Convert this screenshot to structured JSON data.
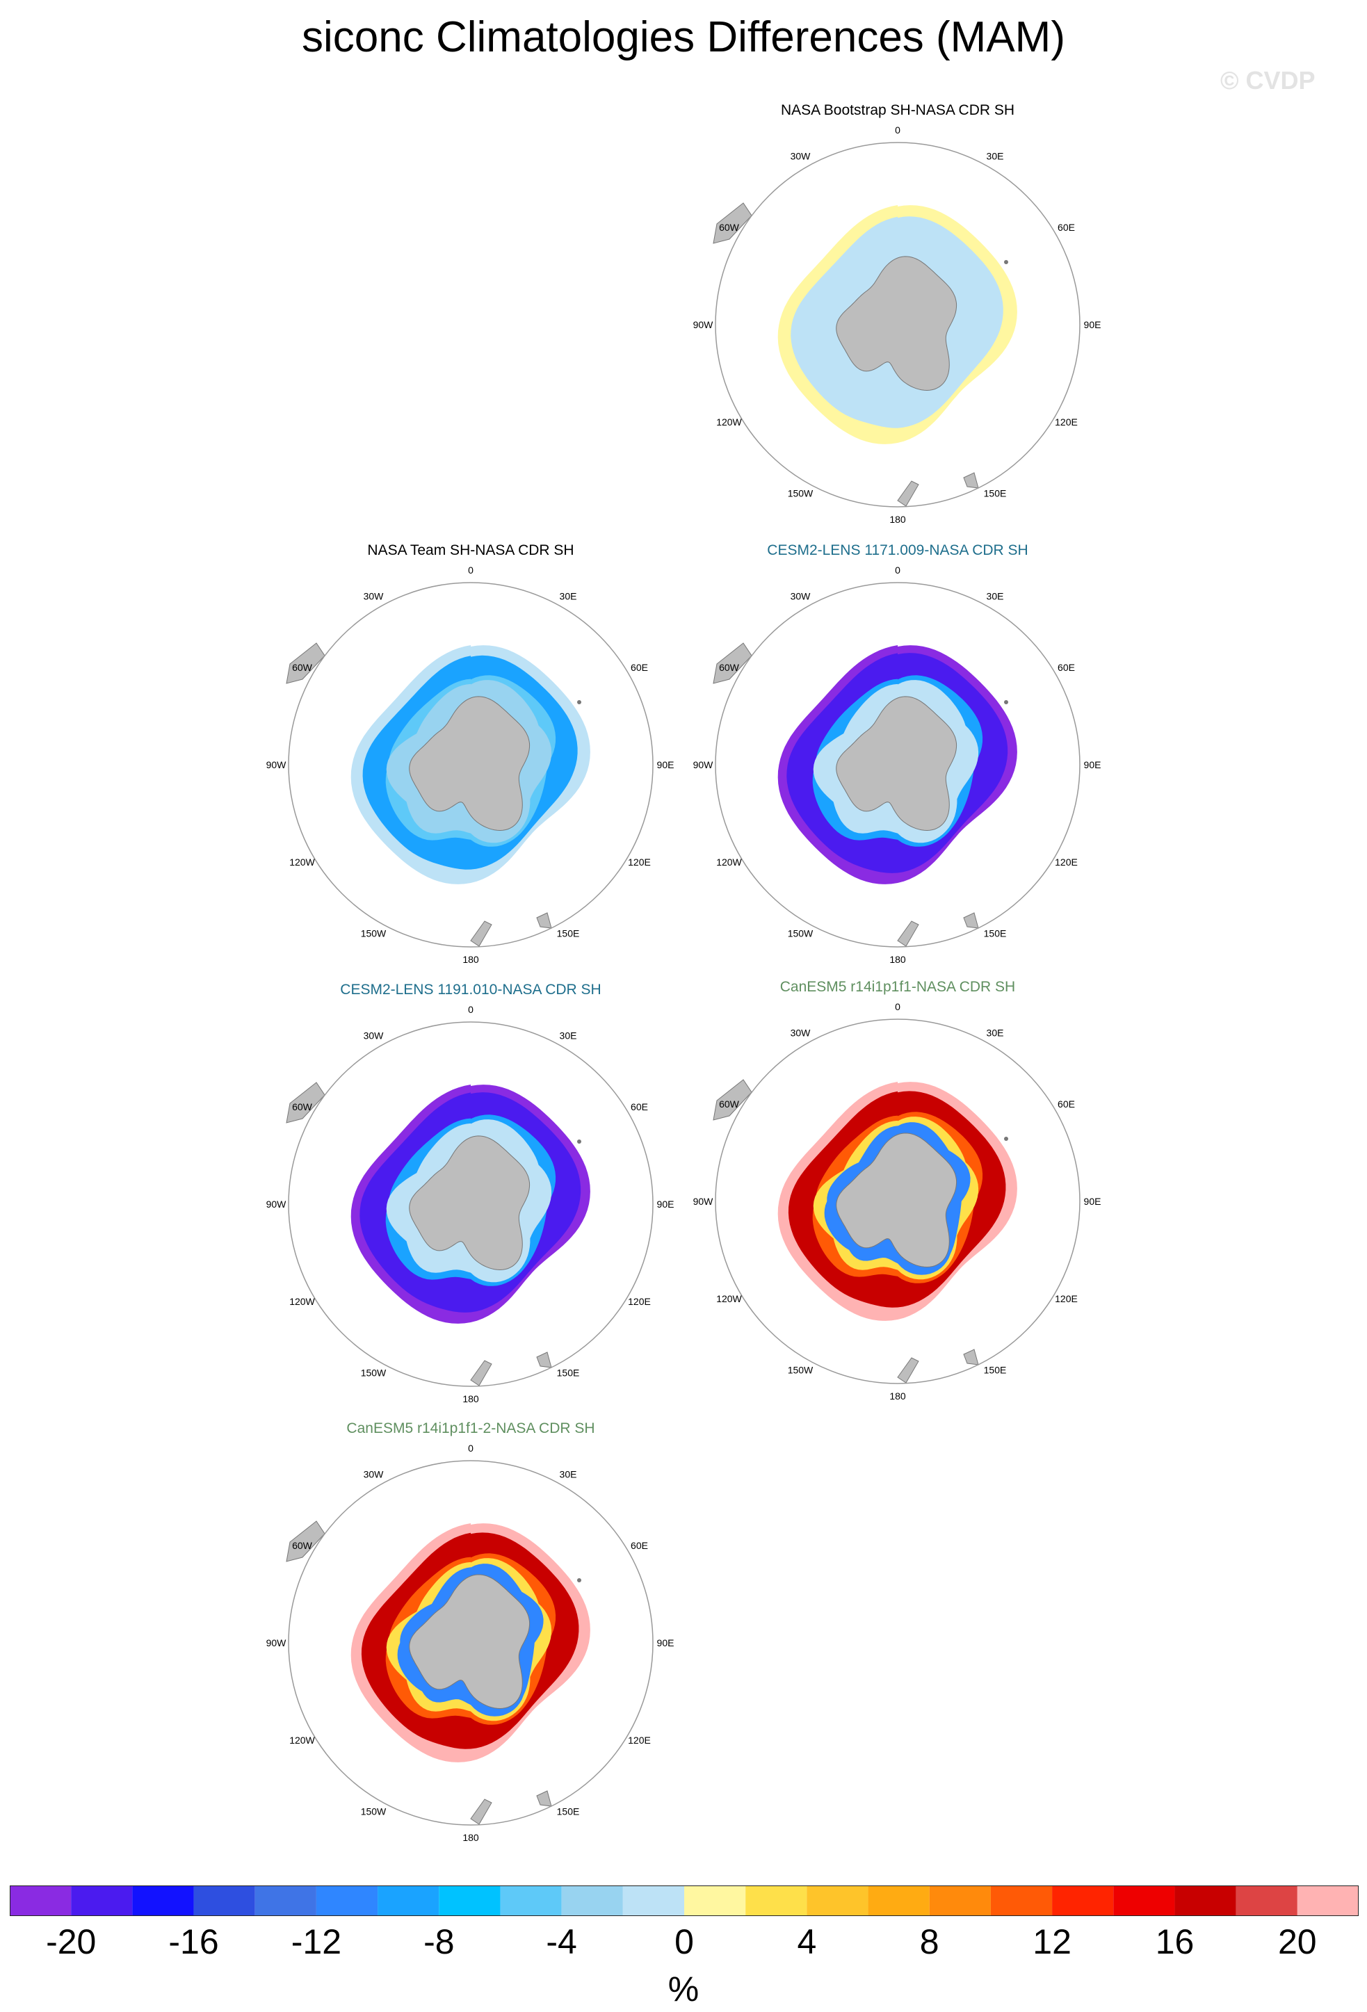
{
  "title": "siconc Climatologies Differences (MAM)",
  "watermark": "© CVDP",
  "units": "%",
  "lon_labels": [
    "0",
    "30E",
    "60E",
    "90E",
    "120E",
    "150E",
    "180",
    "150W",
    "120W",
    "90W",
    "60W",
    "30W"
  ],
  "colorbar": {
    "colors": [
      "#8a2be2",
      "#4b1bef",
      "#1212ff",
      "#2e4fe0",
      "#3f74e6",
      "#2f86ff",
      "#1aa3ff",
      "#00c2ff",
      "#5ec9f8",
      "#98d3f0",
      "#bde2f6",
      "#fff7a0",
      "#fee04a",
      "#fec42a",
      "#ffab12",
      "#ff8a0c",
      "#ff5a06",
      "#ff2400",
      "#ee0000",
      "#c80000",
      "#dd4444",
      "#ffb3b3"
    ],
    "tick_labels": [
      "-20",
      "-16",
      "-12",
      "-8",
      "-4",
      "0",
      "4",
      "8",
      "12",
      "16",
      "20"
    ]
  },
  "panels": [
    {
      "title": "NASA Bootstrap SH-NASA CDR SH",
      "title_color": "#000000",
      "pattern": "bootstrap"
    },
    {
      "title": "NASA Team SH-NASA CDR SH",
      "title_color": "#000000",
      "pattern": "team"
    },
    {
      "title": "CESM2-LENS 1171.009-NASA CDR SH",
      "title_color": "#1e6e8c",
      "pattern": "cesm_a"
    },
    {
      "title": "CESM2-LENS 1191.010-NASA CDR SH",
      "title_color": "#1e6e8c",
      "pattern": "cesm_b"
    },
    {
      "title": "CanESM5 r14i1p1f1-NASA CDR SH",
      "title_color": "#5f8f5f",
      "pattern": "canesm_a"
    },
    {
      "title": "CanESM5 r14i1p1f1-2-NASA CDR SH",
      "title_color": "#5f8f5f",
      "pattern": "canesm_b"
    }
  ]
}
